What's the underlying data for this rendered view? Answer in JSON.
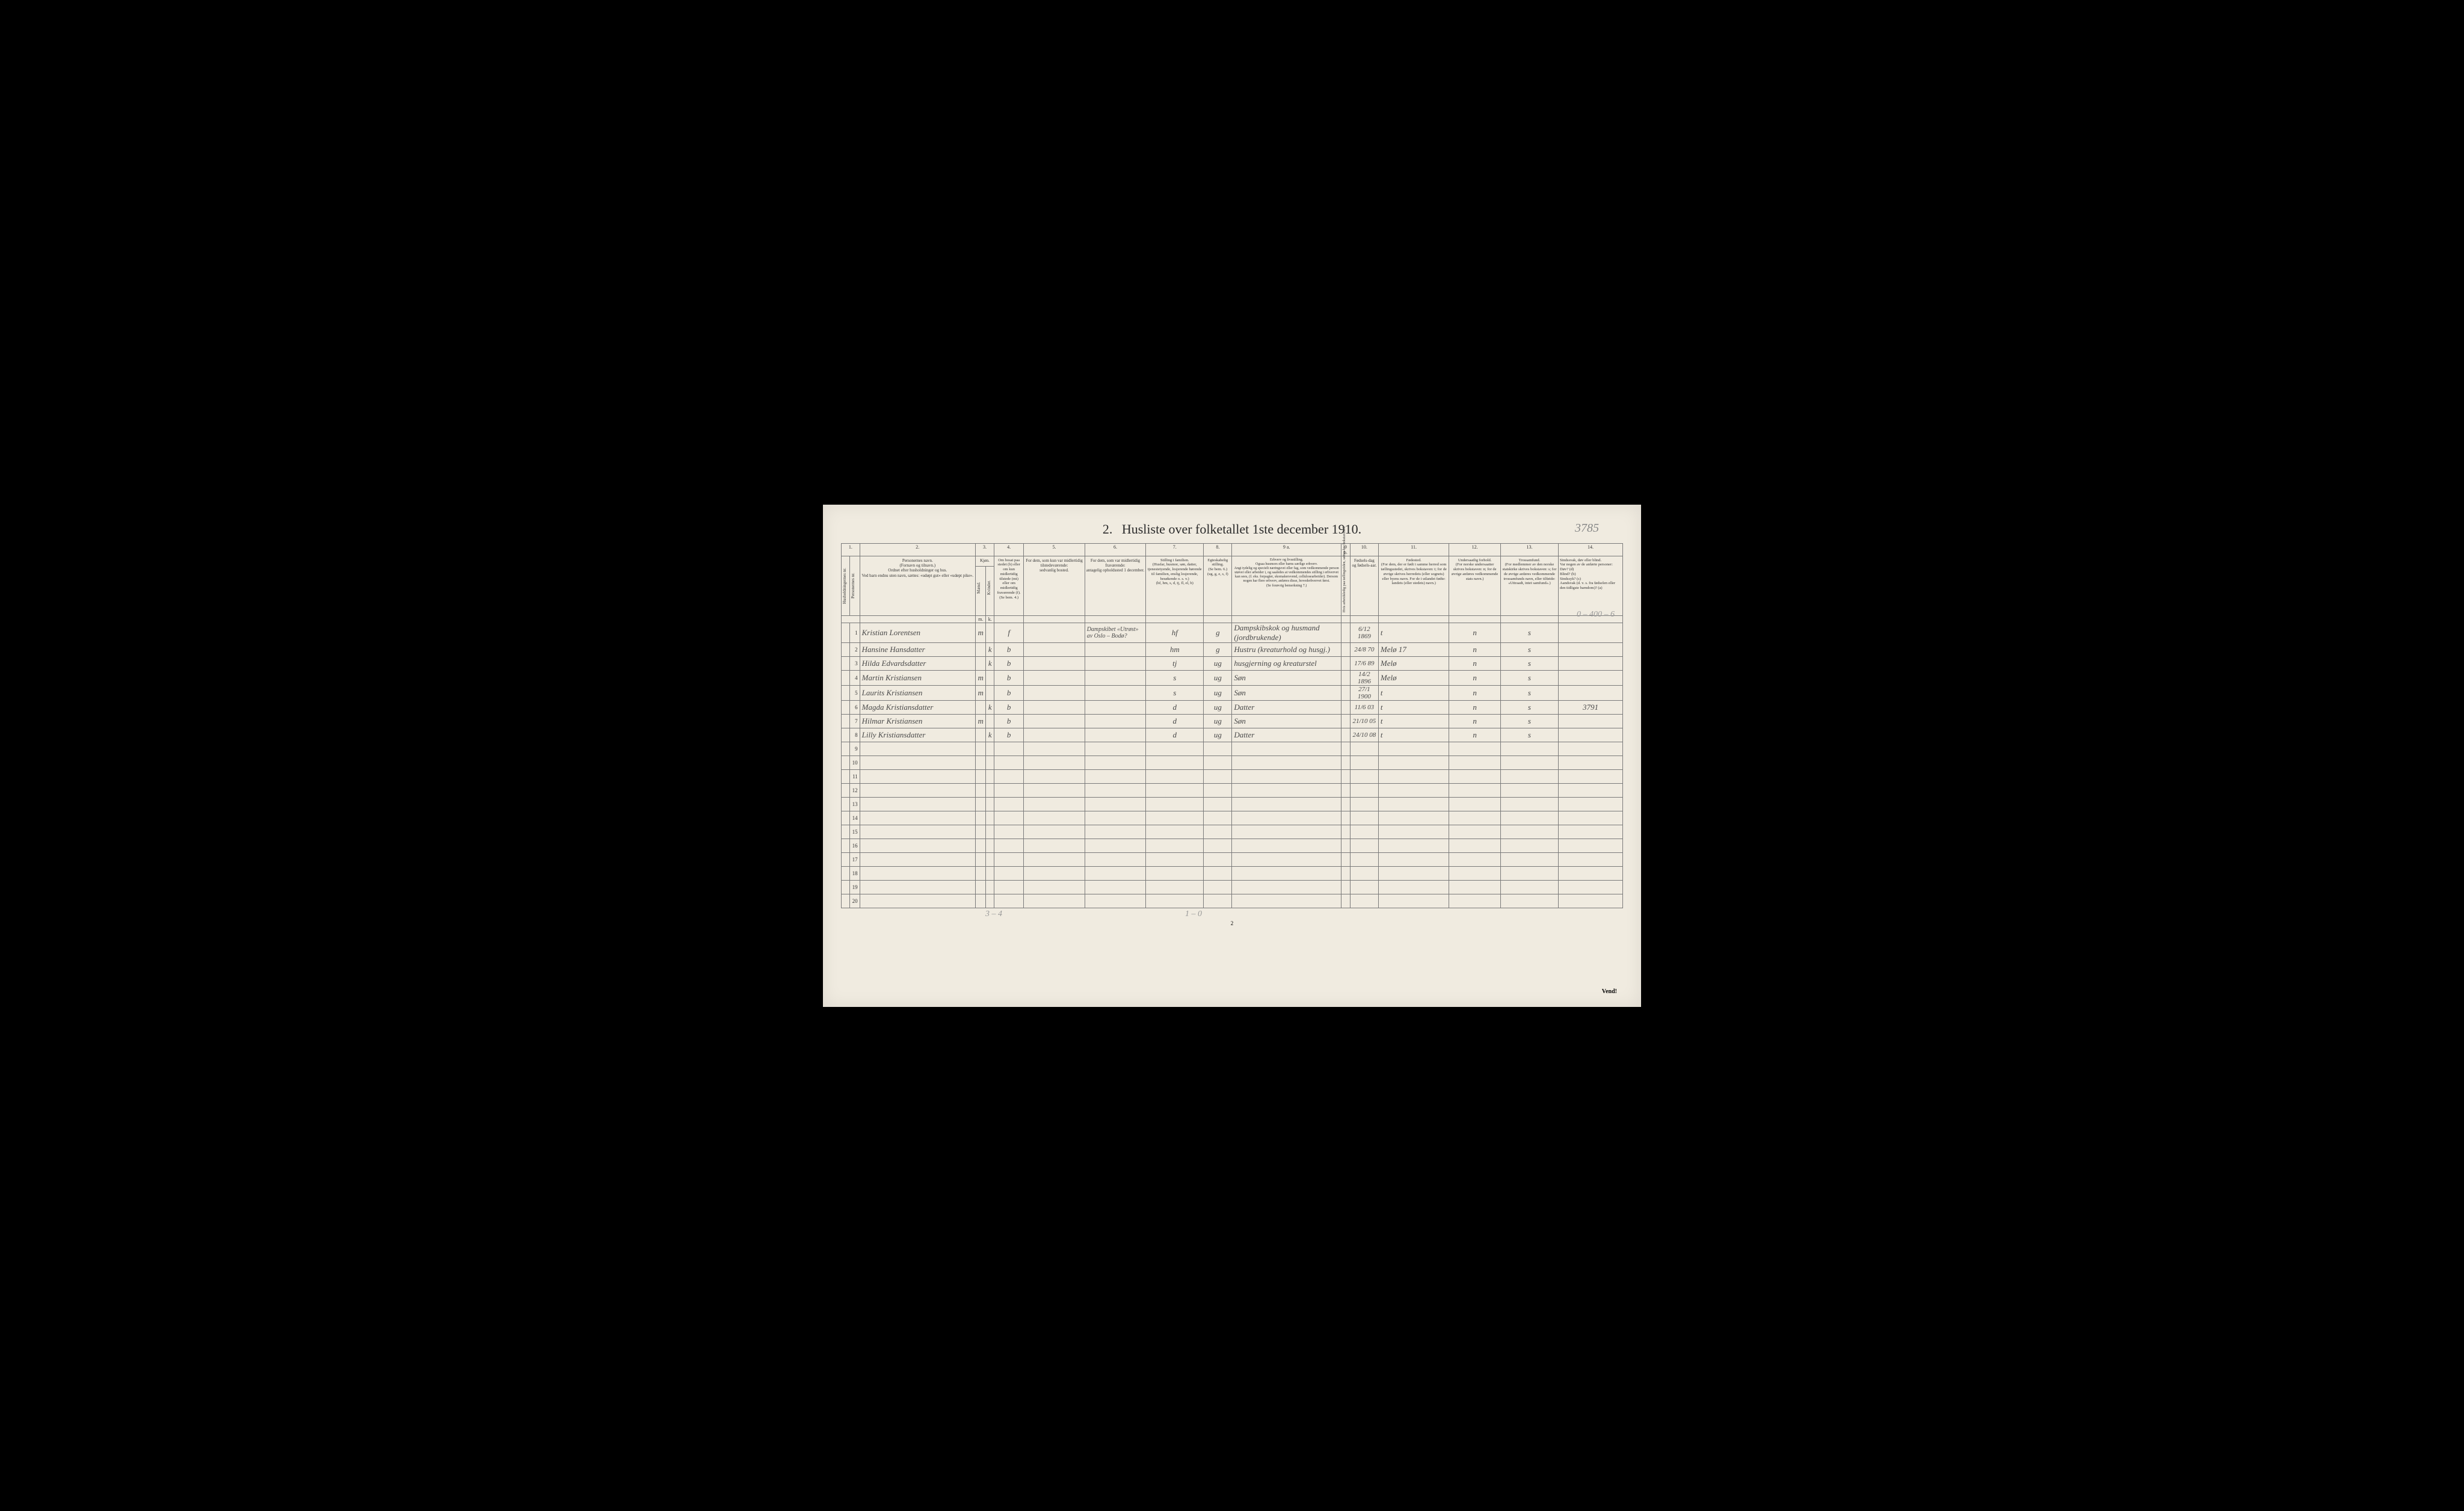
{
  "title_prefix": "2.",
  "title": "Husliste over folketallet 1ste december 1910.",
  "page_id": "3785",
  "colors": {
    "paper": "#f0ebe0",
    "ink": "#2a2a2a",
    "border": "#7a7a7a",
    "handwriting": "#4a4a4a",
    "red_ink": "#b84040",
    "pencil": "#999999"
  },
  "col_nums": [
    "1.",
    "2.",
    "3.",
    "4.",
    "5.",
    "6.",
    "7.",
    "8.",
    "9 a.",
    "9 b.",
    "10.",
    "11.",
    "12.",
    "13.",
    "14."
  ],
  "headers": {
    "c1a": "Husholdningernes nr.",
    "c1b": "Personernes nr.",
    "c2": "Personernes navn.\n(Fornavn og tilnavn.)\nOrdnet efter husholdninger og hus.\nVed barn endnu uten navn, sættes: «udøpt gut» eller «udøpt pike».",
    "c3": "Kjøn.",
    "c3a": "Mænd.",
    "c3b": "Kvinder.",
    "c3m": "m.",
    "c3k": "k.",
    "c4": "Om bosat paa stedet (b) eller om kun midlertidig tilstede (mt) eller om midlertidig fraværende (f). (Se bem. 4.)",
    "c5": "For dem, som kun var midlertidig tilstedeværende:\nsedvanlig bosted.",
    "c6": "For dem, som var midlertidig fraværende:\nantagelig opholdssted 1 december.",
    "c7": "Stilling i familien.\n(Husfar, husmor, søn, datter, tjenestetyende, losjerende hørende til familien, enslig losjerende, besøkende o. s. v.)\n(hf, hm, s, d, tj, fl, el, b)",
    "c8": "Egteskabelig stilling.\n(Se bem. 6.)\n(ug, g, e, s, f)",
    "c9a": "Erhverv og livsstilling.\nOgsaa husmors eller barns særlige erhverv.\nAngi tydelig og specielt næringsvei eller fag, som vedkommende person utøver eller arbeider i, og saaledes at vedkommendes stilling i erhvervet kan sees, (f. eks. forpagter, skomakersvend, cellulosearbeider). Dersom nogen har flere erhverv, anføres disse, hovederhvervet først.\n(Se forøvrig bemerkning 7.)",
    "c9b": "Hvis arbeidsledig paa tællingstiden, sættes her bokstaven: l.",
    "c10": "Fødsels-dag og fødsels-aar.",
    "c11": "Fødested.\n(For dem, der er født i samme herred som tællingsstedet, skrives bokstaven: t; for de øvrige skrives herredets (eller sognets) eller byens navn. For de i utlandet fødte: landets (eller stedets) navn.)",
    "c12": "Undersaatlig forhold.\n(For norske undersaatter skrives bokstaven: n; for de øvrige anføres vedkommende stats navn.)",
    "c13": "Trossamfund.\n(For medlemmer av den norske statskirke skrives bokstaven: s; for de øvrige anføres vedkommende trossamfunds navn, eller tilføide: «Uttraadt, intet samfund».)",
    "c14": "Sindssvak, døv eller blind.\nVar nogen av de anførte personer:\nDøv?       (d)\nBlind?     (b)\nSindssyk? (s)\nAandsvak (d. v. s. fra fødselen eller den tidligste barndom)? (a)"
  },
  "rows": [
    {
      "n": "1",
      "name": "Kristian Lorentsen",
      "sex_m": "m",
      "sex_k": "",
      "stat": "f",
      "c5": "",
      "c6": "Dampskibet «Utrøst» av Oslo – Bodø?",
      "fam": "hf",
      "eg": "g",
      "erhv": "Dampskibskok og husmand (jordbrukende)",
      "b": "",
      "dob": "6/12 1869",
      "born": "t",
      "nat": "n",
      "rel": "s",
      "c14": ""
    },
    {
      "n": "2",
      "name": "Hansine Hansdatter",
      "sex_m": "",
      "sex_k": "k",
      "stat": "b",
      "c5": "",
      "c6": "",
      "fam": "hm",
      "eg": "g",
      "erhv": "Hustru (kreaturhold og husgj.)",
      "b": "",
      "dob": "24/8 70",
      "born": "Melø 17",
      "nat": "n",
      "rel": "s",
      "c14": ""
    },
    {
      "n": "3",
      "name": "Hilda Edvardsdatter",
      "sex_m": "",
      "sex_k": "k",
      "stat": "b",
      "c5": "",
      "c6": "",
      "fam": "tj",
      "eg": "ug",
      "erhv": "husgjerning og kreaturstel",
      "b": "",
      "dob": "17/6 89",
      "born": "Melø",
      "nat": "n",
      "rel": "s",
      "c14": ""
    },
    {
      "n": "4",
      "name": "Martin Kristiansen",
      "sex_m": "m",
      "sex_k": "",
      "stat": "b",
      "c5": "",
      "c6": "",
      "fam": "s",
      "eg": "ug",
      "erhv": "Søn",
      "b": "",
      "dob": "14/2 1896",
      "born": "Melø",
      "nat": "n",
      "rel": "s",
      "c14": "",
      "dob_red": true
    },
    {
      "n": "5",
      "name": "Laurits Kristiansen",
      "sex_m": "m",
      "sex_k": "",
      "stat": "b",
      "c5": "",
      "c6": "",
      "fam": "s",
      "eg": "ug",
      "erhv": "Søn",
      "b": "",
      "dob": "27/1 1900",
      "born": "t",
      "nat": "n",
      "rel": "s",
      "c14": "",
      "dob_red": true
    },
    {
      "n": "6",
      "name": "Magda Kristiansdatter",
      "sex_m": "",
      "sex_k": "k",
      "stat": "b",
      "c5": "",
      "c6": "",
      "fam": "d",
      "eg": "ug",
      "erhv": "Datter",
      "b": "",
      "dob": "11/6 03",
      "born": "t",
      "nat": "n",
      "rel": "s",
      "c14": "3791",
      "c14_pencil": true
    },
    {
      "n": "7",
      "name": "Hilmar Kristiansen",
      "sex_m": "m",
      "sex_k": "",
      "stat": "b",
      "c5": "",
      "c6": "",
      "fam": "d",
      "eg": "ug",
      "erhv": "Søn",
      "b": "",
      "dob": "21/10 05",
      "born": "t",
      "nat": "n",
      "rel": "s",
      "c14": ""
    },
    {
      "n": "8",
      "name": "Lilly Kristiansdatter",
      "sex_m": "",
      "sex_k": "k",
      "stat": "b",
      "c5": "",
      "c6": "",
      "fam": "d",
      "eg": "ug",
      "erhv": "Datter",
      "b": "",
      "dob": "24/10 08",
      "born": "t",
      "nat": "n",
      "rel": "s",
      "c14": ""
    },
    {
      "n": "9"
    },
    {
      "n": "10"
    },
    {
      "n": "11"
    },
    {
      "n": "12"
    },
    {
      "n": "13"
    },
    {
      "n": "14"
    },
    {
      "n": "15"
    },
    {
      "n": "16"
    },
    {
      "n": "17"
    },
    {
      "n": "18"
    },
    {
      "n": "19"
    },
    {
      "n": "20"
    }
  ],
  "bottom": {
    "left": "3 – 4",
    "mid": "1 – 0"
  },
  "page_num": "2",
  "vend": "Vend!",
  "margin_note": "0 – 400 – 6"
}
